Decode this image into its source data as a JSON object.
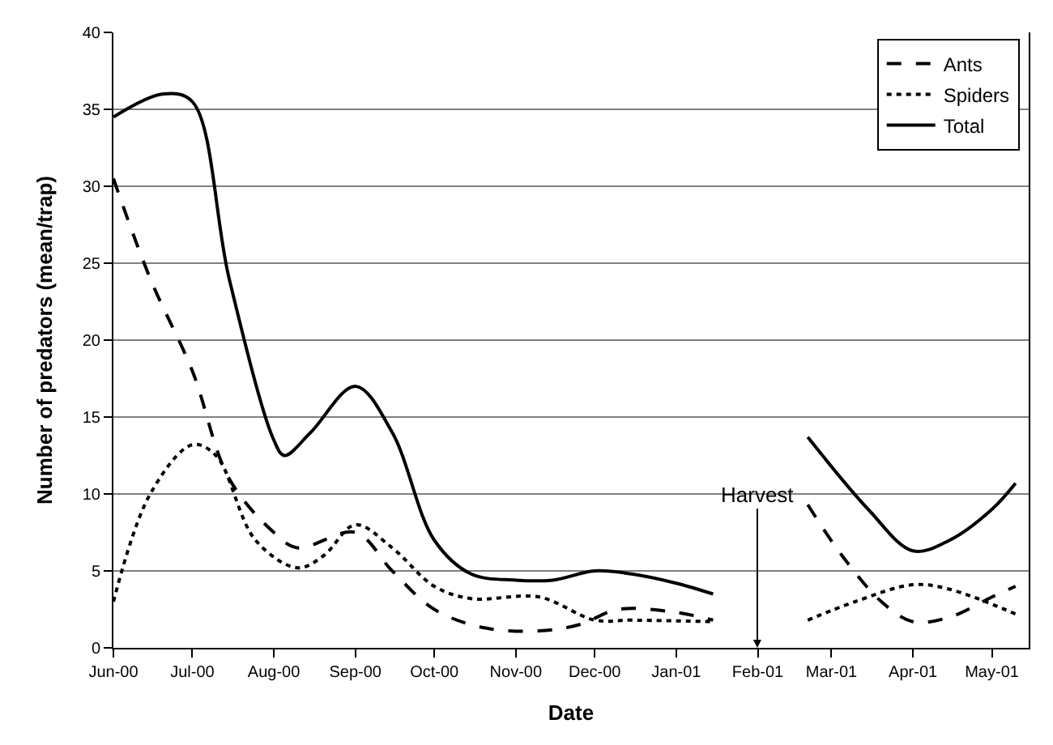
{
  "chart_data": {
    "type": "line",
    "xlabel": "Date",
    "ylabel": "Number of predators (mean/trap)",
    "xlim": [
      "2000-06-01",
      "2001-05-15"
    ],
    "xticks": [
      {
        "value": "2000-06-01",
        "label": "Jun-00"
      },
      {
        "value": "2000-07-01",
        "label": "Jul-00"
      },
      {
        "value": "2000-08-01",
        "label": "Aug-00"
      },
      {
        "value": "2000-09-01",
        "label": "Sep-00"
      },
      {
        "value": "2000-10-01",
        "label": "Oct-00"
      },
      {
        "value": "2000-11-01",
        "label": "Nov-00"
      },
      {
        "value": "2000-12-01",
        "label": "Dec-00"
      },
      {
        "value": "2001-01-01",
        "label": "Jan-01"
      },
      {
        "value": "2001-02-01",
        "label": "Feb-01"
      },
      {
        "value": "2001-03-01",
        "label": "Mar-01"
      },
      {
        "value": "2001-04-01",
        "label": "Apr-01"
      },
      {
        "value": "2001-05-01",
        "label": "May-01"
      }
    ],
    "ylim": [
      0,
      40
    ],
    "yticks": [
      0,
      5,
      10,
      15,
      20,
      25,
      30,
      35,
      40
    ],
    "grid": "y",
    "legend": "top right",
    "marker": "none",
    "annotations": [
      "Harvest"
    ],
    "series": [
      {
        "name": "Ants",
        "color": "#000000",
        "line_style": "dashed",
        "x": [
          "2000-06-01",
          "2000-06-15",
          "2000-07-01",
          "2000-07-15",
          "2000-08-01",
          "2000-08-10",
          "2000-09-01",
          "2000-09-15",
          "2000-10-01",
          "2000-10-20",
          "2000-11-10",
          "2000-11-25",
          "2000-12-10",
          "2001-01-01",
          "2001-01-15",
          "2001-02-01",
          "2001-02-20",
          "2001-03-05",
          "2001-03-20",
          "2001-04-01",
          "2001-04-15",
          "2001-05-01",
          "2001-05-10"
        ],
        "values": [
          30.5,
          24,
          18,
          11,
          7.5,
          6.5,
          7.5,
          5,
          2.5,
          1.3,
          1.1,
          1.5,
          2.5,
          2.3,
          1.8,
          null,
          9.3,
          6,
          3,
          1.7,
          2,
          3.3,
          4
        ]
      },
      {
        "name": "Spiders",
        "color": "#000000",
        "line_style": "dotted",
        "x": [
          "2000-06-01",
          "2000-06-15",
          "2000-07-01",
          "2000-07-10",
          "2000-07-25",
          "2000-08-10",
          "2000-08-20",
          "2000-09-01",
          "2000-09-15",
          "2000-10-01",
          "2000-10-15",
          "2000-11-10",
          "2000-12-01",
          "2000-12-15",
          "2001-01-15",
          "2001-02-01",
          "2001-02-20",
          "2001-03-10",
          "2001-04-01",
          "2001-04-15",
          "2001-05-10"
        ],
        "values": [
          3,
          10,
          13.2,
          12.5,
          7,
          5.2,
          6,
          8,
          6.5,
          4,
          3.2,
          3.3,
          1.8,
          1.8,
          1.7,
          null,
          1.8,
          3,
          4.1,
          3.8,
          2.2
        ]
      },
      {
        "name": "Total",
        "color": "#000000",
        "line_style": "solid",
        "x": [
          "2000-06-01",
          "2000-06-20",
          "2000-07-01",
          "2000-07-15",
          "2000-08-01",
          "2000-08-05",
          "2000-08-15",
          "2000-09-01",
          "2000-09-15",
          "2000-10-01",
          "2000-10-15",
          "2000-11-01",
          "2000-11-15",
          "2000-12-01",
          "2000-12-15",
          "2001-01-01",
          "2001-01-15",
          "2001-02-01",
          "2001-02-20",
          "2001-03-15",
          "2001-04-01",
          "2001-04-15",
          "2001-05-01",
          "2001-05-10"
        ],
        "values": [
          34.5,
          36,
          35.5,
          24,
          13.5,
          12.5,
          14,
          17,
          14,
          7,
          4.8,
          4.4,
          4.4,
          5,
          4.8,
          4.2,
          3.5,
          null,
          13.7,
          9,
          6.3,
          7,
          9,
          10.7
        ]
      }
    ]
  }
}
